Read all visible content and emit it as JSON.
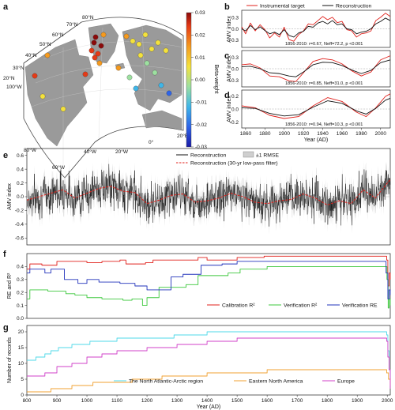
{
  "panel_a": {
    "letter": "a",
    "lat_labels": [
      "80°N",
      "70°N",
      "60°N",
      "50°N",
      "40°N",
      "30°N",
      "20°N"
    ],
    "lon_labels": [
      "100°W",
      "80°W",
      "60°W",
      "40°W",
      "20°W",
      "0°",
      "20°E"
    ],
    "colorbar": {
      "label": "Beta-weight",
      "ticks": [
        "0.03",
        "0.02",
        "0.01",
        "0.00",
        "-0.01",
        "-0.02",
        "-0.03"
      ],
      "colors": [
        "#1a1aa6",
        "#2e64e8",
        "#3fb6e8",
        "#9de0a0",
        "#f4e23c",
        "#f59a1e",
        "#e53a16",
        "#8b0a0a"
      ]
    },
    "sites": [
      {
        "w": 0.03
      },
      {
        "w": 0.028
      },
      {
        "w": 0.026
      },
      {
        "w": 0.02
      },
      {
        "w": 0.018
      },
      {
        "w": 0.015
      },
      {
        "w": 0.012
      },
      {
        "w": 0.01
      },
      {
        "w": 0.008
      },
      {
        "w": 0.006
      },
      {
        "w": 0.005
      },
      {
        "w": 0.004
      },
      {
        "w": 0.003
      },
      {
        "w": 0.002
      },
      {
        "w": 0.001
      },
      {
        "w": 0.0
      },
      {
        "w": -0.002
      },
      {
        "w": -0.004
      },
      {
        "w": -0.006
      },
      {
        "w": -0.01
      },
      {
        "w": -0.014
      },
      {
        "w": -0.02
      },
      {
        "w": 0.009
      },
      {
        "w": 0.016
      },
      {
        "w": 0.007
      },
      {
        "w": 0.002
      },
      {
        "w": 0.022
      },
      {
        "w": 0.011
      }
    ]
  },
  "panel_b": {
    "letter": "b",
    "legend": [
      "Instrumental target",
      "Reconstruction"
    ],
    "stat": "1856-2010: r=0.67, Neff=72.2, p <0.001",
    "ylabel": "AMV index",
    "yticks": [
      "0.3",
      "0.0",
      "-0.3"
    ]
  },
  "panel_c": {
    "letter": "c",
    "stat": "1856-2010: r=0.85, Neff=31.0, p <0.001",
    "ylabel": "AMV index",
    "yticks": [
      "0.3",
      "0.0",
      "-0.3"
    ]
  },
  "panel_d": {
    "letter": "d",
    "stat": "1856-2010: r=0.94, Neff=10.3, p <0.001",
    "ylabel": "AMV index",
    "yticks": [
      "0.2",
      "0.0",
      "-0.2"
    ],
    "xticks": [
      "1860",
      "1880",
      "1900",
      "1920",
      "1940",
      "1960",
      "1980",
      "2000"
    ],
    "xlabel": "Year (AD)"
  },
  "panel_e": {
    "letter": "e",
    "legend": [
      "Reconstruction",
      "±1 RMSE",
      "Reconstruction (30-yr low-pass filter)"
    ],
    "ylabel": "AMV index",
    "yticks": [
      "0.6",
      "0.4",
      "0.2",
      "0.0",
      "-0.2",
      "-0.4",
      "-0.6"
    ]
  },
  "panel_f": {
    "letter": "f",
    "legend": [
      "Calibration R²",
      "Verification R²",
      "Verification RE"
    ],
    "ylabel": "RE and R²",
    "yticks": [
      "0.4",
      "0.3",
      "0.2",
      "0.1",
      "0.0"
    ]
  },
  "panel_g": {
    "letter": "g",
    "legend": [
      "The North Atlantic-Arctic region",
      "Eastern North America",
      "Europe"
    ],
    "ylabel": "Number of records",
    "yticks": [
      "20",
      "15",
      "10",
      "5",
      "0"
    ],
    "xticks": [
      "800",
      "900",
      "1000",
      "1100",
      "1200",
      "1300",
      "1400",
      "1500",
      "1600",
      "1700",
      "1800",
      "1900",
      "2000"
    ],
    "xlabel": "Year (AD)"
  },
  "chart_data": [
    {
      "type": "line",
      "panel": "b",
      "xlim": [
        1856,
        2010
      ],
      "ylim": [
        -0.45,
        0.45
      ],
      "series": [
        {
          "name": "Instrumental target",
          "color": "#e0201b",
          "x": [
            1856,
            1860,
            1865,
            1870,
            1875,
            1880,
            1885,
            1890,
            1895,
            1900,
            1905,
            1910,
            1915,
            1920,
            1925,
            1930,
            1935,
            1940,
            1945,
            1950,
            1955,
            1960,
            1965,
            1970,
            1975,
            1980,
            1985,
            1990,
            1995,
            2000,
            2005,
            2010
          ],
          "y": [
            0.05,
            -0.12,
            0.14,
            -0.05,
            0.1,
            -0.02,
            -0.22,
            -0.1,
            -0.2,
            0.04,
            -0.26,
            -0.3,
            -0.14,
            -0.05,
            0.12,
            0.1,
            0.2,
            0.3,
            0.22,
            0.28,
            0.15,
            0.18,
            -0.02,
            -0.05,
            -0.2,
            -0.12,
            -0.1,
            -0.05,
            0.2,
            0.28,
            0.38,
            0.3
          ]
        },
        {
          "name": "Reconstruction",
          "color": "#111111",
          "x": [
            1856,
            1860,
            1865,
            1870,
            1875,
            1880,
            1885,
            1890,
            1895,
            1900,
            1905,
            1910,
            1915,
            1920,
            1925,
            1930,
            1935,
            1940,
            1945,
            1950,
            1955,
            1960,
            1965,
            1970,
            1975,
            1980,
            1985,
            1990,
            1995,
            2000,
            2005,
            2010
          ],
          "y": [
            0.0,
            -0.05,
            0.08,
            -0.02,
            0.05,
            -0.04,
            -0.12,
            -0.08,
            -0.14,
            -0.02,
            -0.16,
            -0.2,
            -0.1,
            -0.06,
            0.06,
            0.04,
            0.14,
            0.18,
            0.12,
            0.2,
            0.1,
            0.12,
            0.0,
            -0.02,
            -0.12,
            -0.08,
            -0.06,
            0.0,
            0.12,
            0.18,
            0.26,
            0.2
          ]
        }
      ]
    },
    {
      "type": "line",
      "panel": "c",
      "xlim": [
        1856,
        2010
      ],
      "ylim": [
        -0.45,
        0.45
      ],
      "series": [
        {
          "name": "Instrumental target",
          "color": "#e0201b",
          "x": [
            1856,
            1865,
            1875,
            1885,
            1895,
            1905,
            1912,
            1920,
            1930,
            1940,
            1950,
            1960,
            1970,
            1980,
            1990,
            2000,
            2010
          ],
          "y": [
            0.1,
            0.12,
            0.02,
            -0.18,
            -0.2,
            -0.3,
            -0.32,
            -0.1,
            0.18,
            0.25,
            0.22,
            0.12,
            -0.05,
            -0.18,
            -0.08,
            0.22,
            0.32
          ]
        },
        {
          "name": "Reconstruction",
          "color": "#111111",
          "x": [
            1856,
            1865,
            1875,
            1885,
            1895,
            1905,
            1912,
            1920,
            1930,
            1940,
            1950,
            1960,
            1970,
            1980,
            1990,
            2000,
            2010
          ],
          "y": [
            0.05,
            0.06,
            0.0,
            -0.1,
            -0.12,
            -0.18,
            -0.2,
            -0.08,
            0.1,
            0.16,
            0.15,
            0.08,
            -0.03,
            -0.12,
            -0.04,
            0.15,
            0.22
          ]
        }
      ]
    },
    {
      "type": "line",
      "panel": "d",
      "xlim": [
        1856,
        2010
      ],
      "ylim": [
        -0.3,
        0.3
      ],
      "series": [
        {
          "name": "Instrumental target",
          "color": "#e0201b",
          "x": [
            1856,
            1870,
            1885,
            1900,
            1915,
            1930,
            1945,
            1960,
            1975,
            1985,
            1995,
            2005,
            2010
          ],
          "y": [
            0.05,
            0.02,
            -0.1,
            -0.15,
            -0.12,
            0.05,
            0.18,
            0.12,
            -0.05,
            -0.12,
            0.02,
            0.2,
            0.24
          ]
        },
        {
          "name": "Reconstruction",
          "color": "#111111",
          "x": [
            1856,
            1870,
            1885,
            1900,
            1915,
            1930,
            1945,
            1960,
            1975,
            1985,
            1995,
            2005,
            2010
          ],
          "y": [
            0.02,
            0.01,
            -0.07,
            -0.11,
            -0.09,
            0.03,
            0.13,
            0.09,
            -0.03,
            -0.08,
            0.01,
            0.14,
            0.17
          ]
        }
      ]
    },
    {
      "type": "line",
      "panel": "e",
      "xlim": [
        800,
        2010
      ],
      "ylim": [
        -0.7,
        0.7
      ],
      "rmse": 0.12,
      "series": [
        {
          "name": "Reconstruction (30-yr low-pass filter)",
          "color": "#e0201b",
          "x": [
            800,
            840,
            880,
            920,
            960,
            1000,
            1040,
            1080,
            1120,
            1160,
            1200,
            1240,
            1280,
            1320,
            1360,
            1400,
            1440,
            1480,
            1520,
            1560,
            1600,
            1640,
            1680,
            1720,
            1760,
            1800,
            1840,
            1880,
            1920,
            1960,
            2010
          ],
          "y": [
            -0.05,
            0.0,
            0.05,
            0.1,
            -0.02,
            0.05,
            0.12,
            0.15,
            0.08,
            0.06,
            -0.1,
            -0.05,
            0.02,
            0.04,
            -0.08,
            -0.06,
            -0.02,
            0.05,
            0.0,
            -0.08,
            -0.1,
            -0.06,
            -0.04,
            0.04,
            -0.02,
            -0.12,
            -0.06,
            -0.1,
            0.1,
            -0.02,
            0.25
          ]
        }
      ]
    },
    {
      "type": "line",
      "panel": "f",
      "xlim": [
        800,
        2010
      ],
      "ylim": [
        0.0,
        0.5
      ],
      "series": [
        {
          "name": "Calibration R²",
          "color": "#e0201b",
          "x": [
            800,
            810,
            850,
            900,
            1000,
            1050,
            1110,
            1130,
            1195,
            1220,
            1300,
            1370,
            1400,
            1500,
            1590,
            1990,
            1998,
            2002,
            2006,
            2010
          ],
          "y": [
            0.38,
            0.42,
            0.41,
            0.44,
            0.43,
            0.44,
            0.45,
            0.42,
            0.43,
            0.45,
            0.45,
            0.47,
            0.45,
            0.47,
            0.48,
            0.48,
            0.45,
            0.25,
            0.35,
            0.3
          ]
        },
        {
          "name": "Verification R²",
          "color": "#3cc83c",
          "x": [
            800,
            810,
            870,
            930,
            960,
            1000,
            1050,
            1120,
            1150,
            1185,
            1200,
            1240,
            1330,
            1370,
            1470,
            1510,
            1600,
            1995,
            1999,
            2003,
            2006,
            2010
          ],
          "y": [
            0.15,
            0.22,
            0.21,
            0.19,
            0.18,
            0.16,
            0.15,
            0.14,
            0.15,
            0.1,
            0.16,
            0.24,
            0.26,
            0.33,
            0.35,
            0.38,
            0.4,
            0.4,
            0.3,
            0.08,
            0.15,
            0.1
          ]
        },
        {
          "name": "Verification RE",
          "color": "#2233bb",
          "x": [
            800,
            810,
            860,
            880,
            925,
            970,
            1000,
            1040,
            1110,
            1160,
            1200,
            1280,
            1320,
            1380,
            1450,
            1500,
            1600,
            1990,
            1996,
            2002,
            2006,
            2010
          ],
          "y": [
            0.35,
            0.38,
            0.35,
            0.38,
            0.3,
            0.27,
            0.3,
            0.28,
            0.27,
            0.25,
            0.22,
            0.32,
            0.34,
            0.41,
            0.42,
            0.44,
            0.44,
            0.44,
            0.35,
            0.15,
            0.22,
            0.18
          ]
        }
      ]
    },
    {
      "type": "line",
      "panel": "g",
      "xlim": [
        800,
        2010
      ],
      "ylim": [
        0,
        22
      ],
      "series": [
        {
          "name": "The North Atlantic-Arctic region",
          "color": "#4fd8e8",
          "x": [
            800,
            830,
            860,
            880,
            905,
            950,
            1010,
            1100,
            1200,
            1290,
            1400,
            1500,
            1900,
            1990,
            1998,
            2002,
            2006,
            2010
          ],
          "y": [
            11,
            12,
            13,
            14,
            15,
            16,
            17,
            18,
            18,
            19,
            20,
            20,
            20,
            20,
            19,
            14,
            8,
            5
          ]
        },
        {
          "name": "Eastern North America",
          "color": "#f0a030",
          "x": [
            800,
            880,
            950,
            1020,
            1150,
            1250,
            1400,
            1600,
            1990,
            1998,
            2004,
            2010
          ],
          "y": [
            1,
            2,
            3,
            4,
            5,
            6,
            7,
            8,
            8,
            7,
            5,
            3
          ]
        },
        {
          "name": "Europe",
          "color": "#d040c8",
          "x": [
            800,
            860,
            900,
            950,
            1000,
            1050,
            1100,
            1200,
            1300,
            1400,
            1500,
            1990,
            1998,
            2002,
            2006,
            2010
          ],
          "y": [
            6,
            7,
            9,
            10,
            12,
            13,
            14,
            15,
            16,
            17,
            18,
            18,
            17,
            12,
            8,
            2
          ]
        }
      ]
    }
  ]
}
